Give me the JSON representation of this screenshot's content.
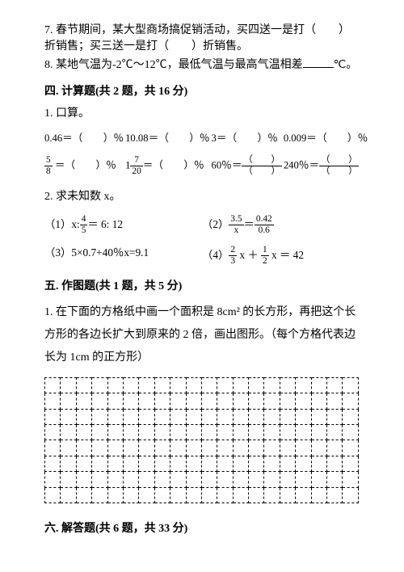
{
  "q7": "7. 春节期间，某大型商场搞促销活动，买四送一是打（　　）折销售；买三送一是打（　　）折销售。",
  "q8_a": "8. 某地气温为-2℃～12℃，最低气温与最高气温相差",
  "q8_b": "℃。",
  "sec4": {
    "head": "四. 计算题(共 2 题，共 16 分)",
    "q1": "1. 口算。",
    "q2": "2. 求未知数 x。"
  },
  "calc": {
    "r1c1": "0.46＝（　　）％",
    "r1c2": "10.08＝（　　）％",
    "r1c3": "3＝（　　）％",
    "r1c4": "0.009＝（　　）％",
    "r2c1": {
      "num": "5",
      "den": "8",
      "tail": " ＝（　　）％"
    },
    "r2c2": {
      "pre": "1",
      "num": "7",
      "den": "20",
      "tail": "＝（　　）％"
    },
    "r2c3": {
      "pre": "60％＝",
      "num": "（　　）",
      "den": "（　　）"
    },
    "r2c4": {
      "pre": "240％＝",
      "num": "（　　）",
      "den": "（　　）"
    }
  },
  "eqs": {
    "e1": {
      "label": "（1）x:",
      "n": "4",
      "d": "5",
      "tail": "＝ 6: 12"
    },
    "e2": {
      "label": "（2）",
      "n1": "3.5",
      "d1": "x",
      "mid": "＝",
      "n2": "0.42",
      "d2": "0.6"
    },
    "e3": "（3）5×0.7+40％x=9.1",
    "e4": {
      "label": "（4）",
      "n1": "2",
      "d1": "3",
      "mid": " x ＋ ",
      "n2": "1",
      "d2": "2",
      "tail": " x ＝ 42"
    }
  },
  "sec5": {
    "head": "五. 作图题(共 1 题，共 5 分)",
    "q1": "1. 在下面的方格纸中画一个面积是 8cm² 的长方形，再把这个长方形的各边长扩大到原来的 2 倍，画出图形。（每个方格代表边长为 1cm 的正方形）"
  },
  "sec6": {
    "head": "六. 解答题(共 6 题，共 33 分)"
  },
  "grid": {
    "cols": 20,
    "rows": 8
  }
}
